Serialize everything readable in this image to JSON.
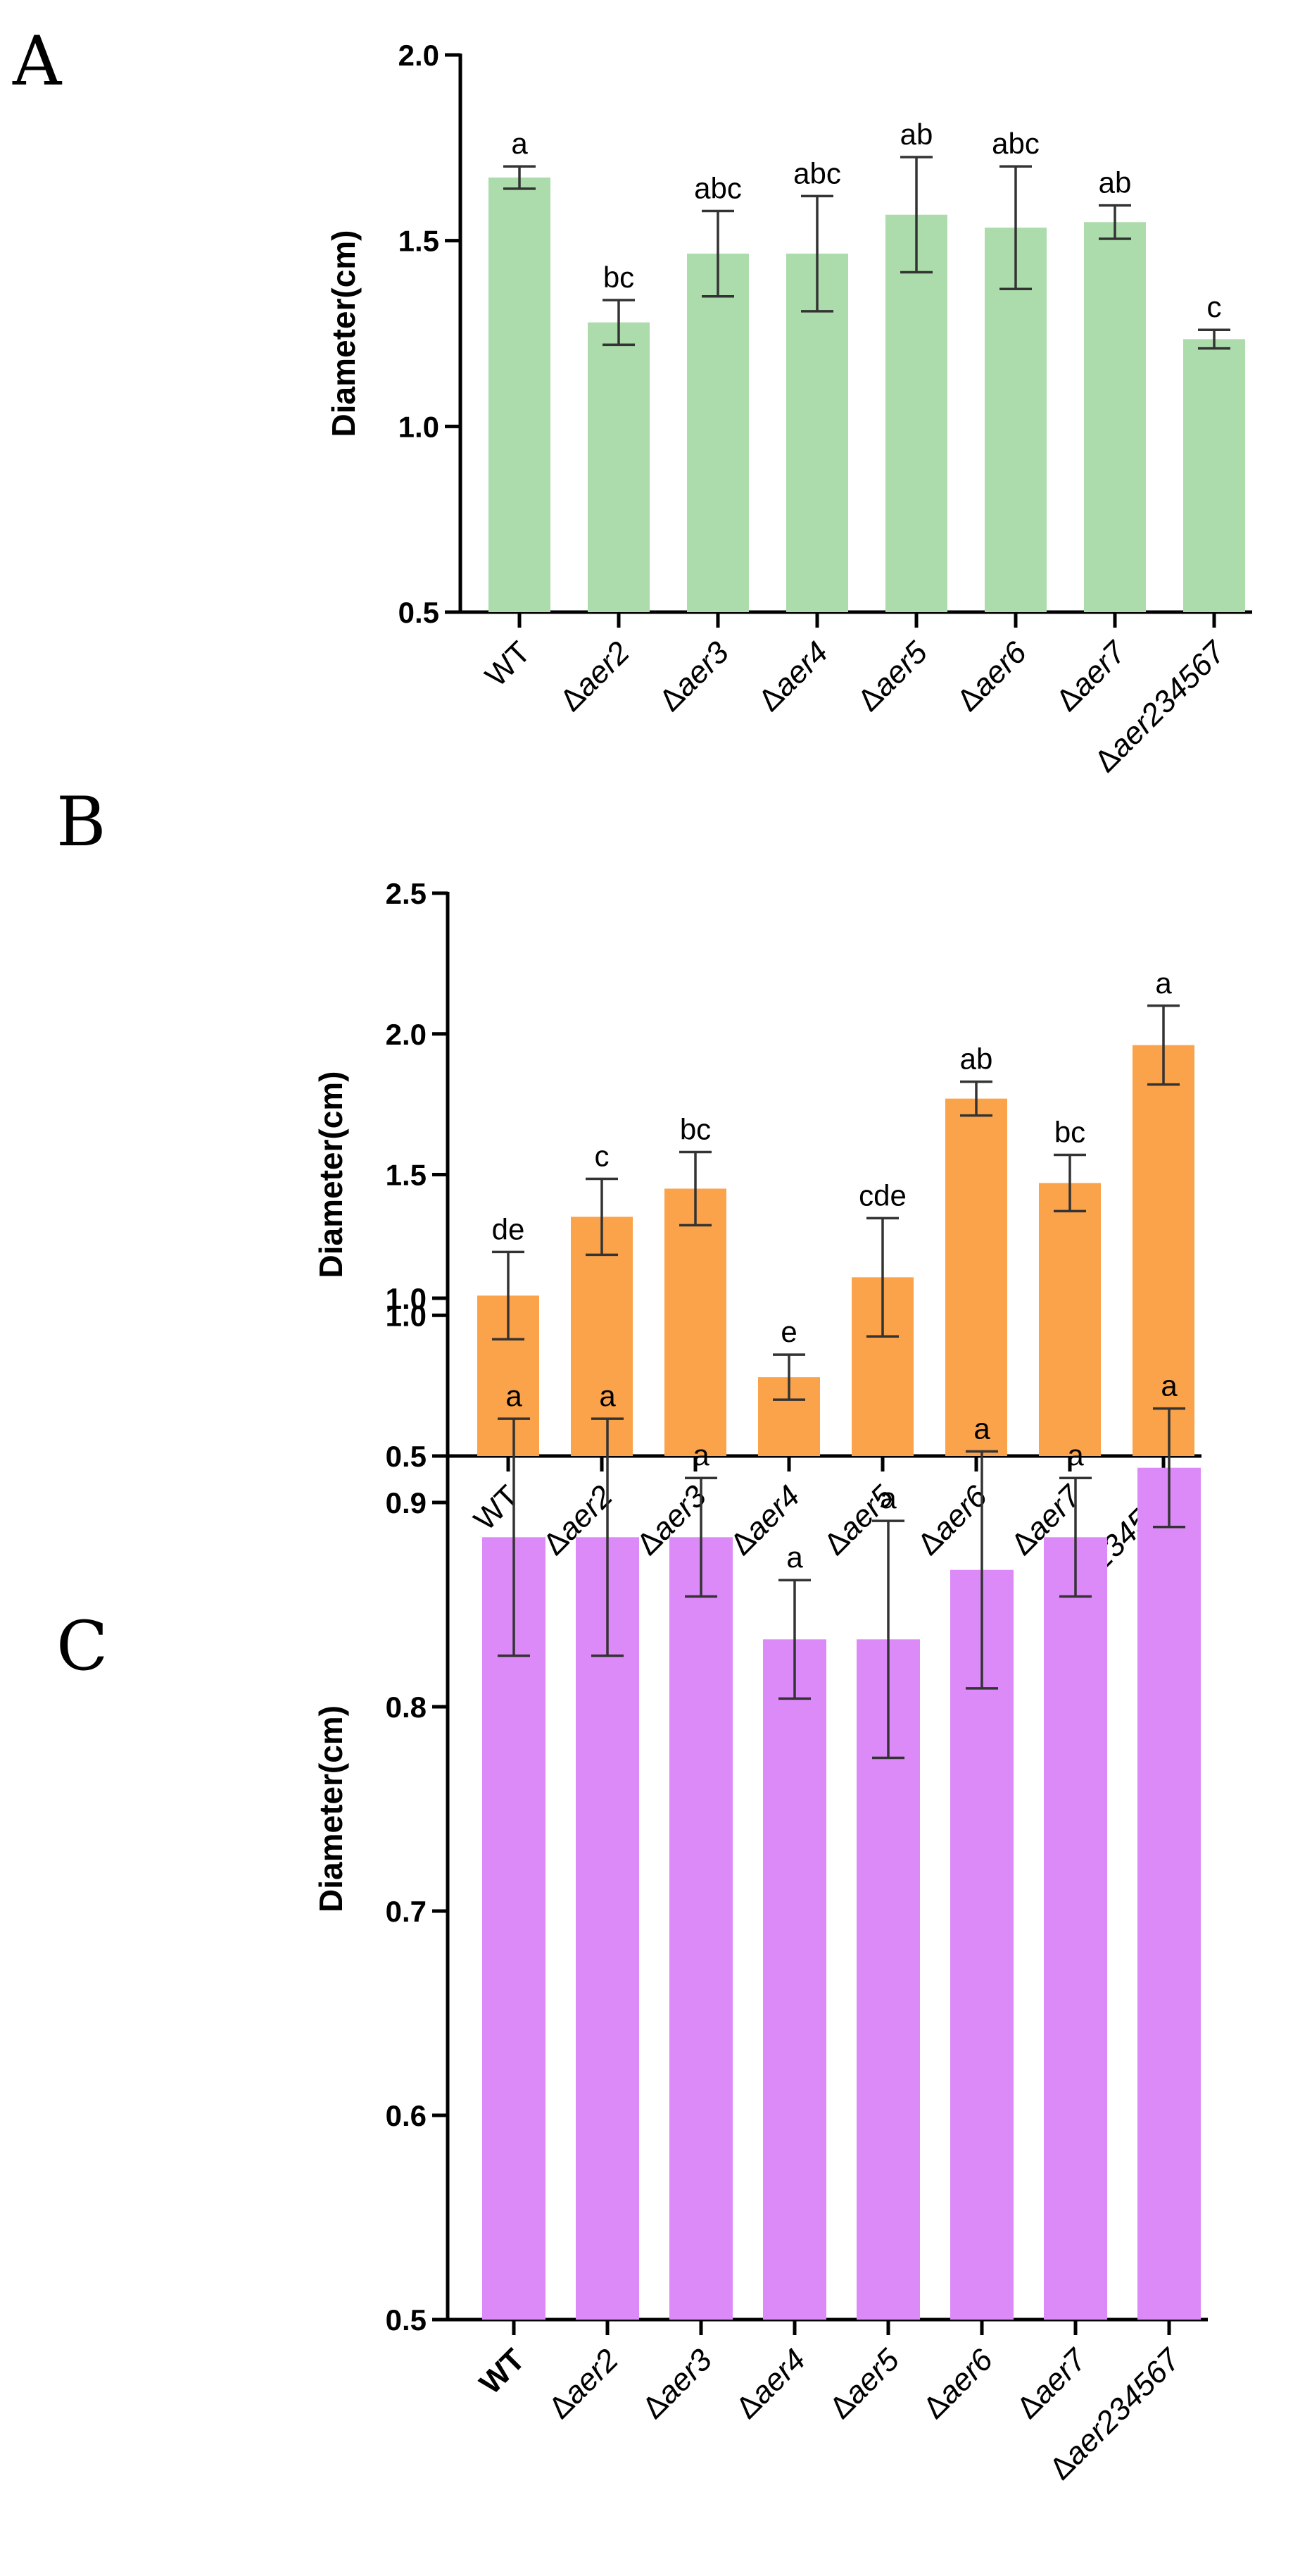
{
  "chart_data": [
    {
      "type": "bar",
      "panel": "A",
      "title": "",
      "xlabel": "",
      "ylabel": "Diameter(cm)",
      "ylim": [
        0.5,
        2.0
      ],
      "yticks": [
        "0.5",
        "1.0",
        "1.5",
        "2.0"
      ],
      "categories": [
        "WT",
        "Δaer2",
        "Δaer3",
        "Δaer4",
        "Δaer5",
        "Δaer6",
        "Δaer7",
        "Δaer234567"
      ],
      "values": [
        1.67,
        1.28,
        1.465,
        1.465,
        1.57,
        1.535,
        1.55,
        1.235
      ],
      "errors": [
        0.03,
        0.06,
        0.115,
        0.155,
        0.155,
        0.165,
        0.045,
        0.025
      ],
      "significance": [
        "a",
        "bc",
        "abc",
        "abc",
        "ab",
        "abc",
        "ab",
        "c"
      ],
      "color": "#acdcab",
      "grid": false
    },
    {
      "type": "bar",
      "panel": "B",
      "title": "",
      "xlabel": "",
      "ylabel": "Diameter(cm)",
      "ylim": [
        0.5,
        2.5
      ],
      "yticks": [
        "0.5",
        "1.0",
        "1.5",
        "2.0",
        "2.5"
      ],
      "categories": [
        "WT",
        "Δaer2",
        "Δaer3",
        "Δaer4",
        "Δaer5",
        "Δaer6",
        "Δaer7",
        "Δaer234567"
      ],
      "values": [
        1.07,
        1.35,
        1.45,
        0.78,
        1.135,
        1.77,
        1.47,
        1.96
      ],
      "errors": [
        0.155,
        0.135,
        0.13,
        0.08,
        0.21,
        0.06,
        0.1,
        0.14
      ],
      "significance": [
        "de",
        "c",
        "bc",
        "e",
        "cde",
        "ab",
        "bc",
        "a"
      ],
      "color": "#fba34a",
      "grid": false
    },
    {
      "type": "bar",
      "panel": "C",
      "title": "",
      "xlabel": "",
      "ylabel": "Diameter(cm)",
      "ylim": [
        0.5,
        1.0
      ],
      "yticks": [
        "0.5",
        "0.6",
        "0.7",
        "0.8",
        "0.9",
        "1.0"
      ],
      "categories": [
        "WT",
        "Δaer2",
        "Δaer3",
        "Δaer4",
        "Δaer5",
        "Δaer6",
        "Δaer7",
        "Δaer234567"
      ],
      "values": [
        0.883,
        0.883,
        0.883,
        0.833,
        0.833,
        0.867,
        0.883,
        0.917
      ],
      "errors": [
        0.058,
        0.058,
        0.029,
        0.029,
        0.058,
        0.058,
        0.029,
        0.029
      ],
      "significance": [
        "a",
        "a",
        "a",
        "a",
        "a",
        "a",
        "a",
        "a"
      ],
      "color": "#dc8af7",
      "grid": false
    }
  ]
}
